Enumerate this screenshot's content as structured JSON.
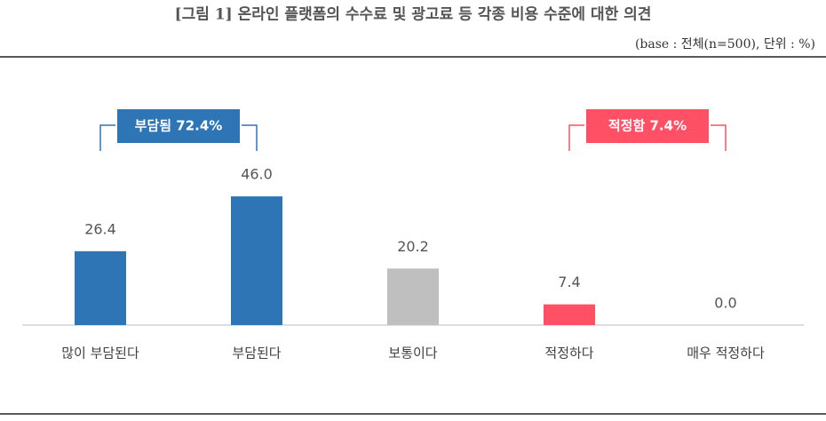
{
  "chart_data": {
    "type": "bar",
    "title": "[그림 1] 온라인 플랫폼의 수수료 및 광고료 등 각종 비용 수준에 대한 의견",
    "subtitle": "(base : 전체(n=500), 단위 : %)",
    "categories": [
      "많이 부담된다",
      "부담된다",
      "보통이다",
      "적정하다",
      "매우 적정하다"
    ],
    "values": [
      26.4,
      46.0,
      20.2,
      7.4,
      0.0
    ],
    "value_labels": [
      "26.4",
      "46.0",
      "20.2",
      "7.4",
      "0.0"
    ],
    "colors": [
      "#2e75b6",
      "#2e75b6",
      "#bfbfbf",
      "#ff5066",
      "#ff5066"
    ],
    "annotations": [
      {
        "text": "부담됨 72.4%",
        "color": "#2e75b6"
      },
      {
        "text": "적정함 7.4%",
        "color": "#ff5066"
      }
    ]
  }
}
